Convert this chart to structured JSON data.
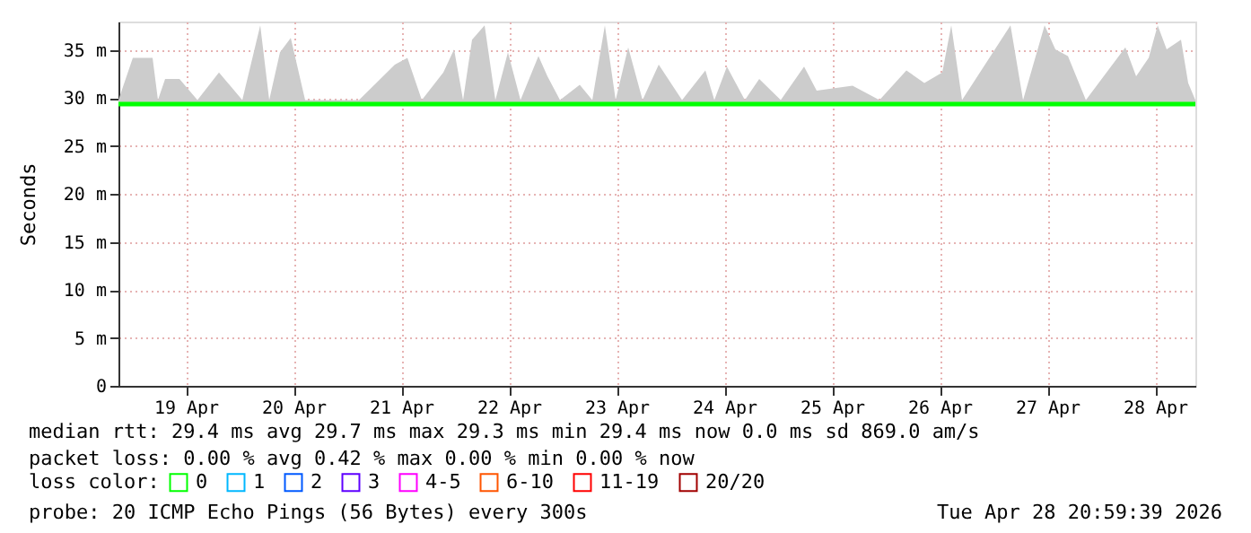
{
  "chart_data": {
    "type": "line",
    "ylabel": "Seconds",
    "xlim": [
      "2026-04-18T21:00",
      "2026-04-28T21:00"
    ],
    "xticks": [
      {
        "value": "2026-04-19T12:00",
        "label": "19 Apr"
      },
      {
        "value": "2026-04-20T12:00",
        "label": "20 Apr"
      },
      {
        "value": "2026-04-21T12:00",
        "label": "21 Apr"
      },
      {
        "value": "2026-04-22T12:00",
        "label": "22 Apr"
      },
      {
        "value": "2026-04-23T12:00",
        "label": "23 Apr"
      },
      {
        "value": "2026-04-24T12:00",
        "label": "24 Apr"
      },
      {
        "value": "2026-04-25T12:00",
        "label": "25 Apr"
      },
      {
        "value": "2026-04-26T12:00",
        "label": "26 Apr"
      },
      {
        "value": "2026-04-27T12:00",
        "label": "27 Apr"
      },
      {
        "value": "2026-04-28T12:00",
        "label": "28 Apr"
      }
    ],
    "ylim": [
      0,
      38
    ],
    "yticks": [
      0,
      {
        "value": 5,
        "label": "5 m"
      },
      {
        "value": 10,
        "label": "10 m"
      },
      {
        "value": 15,
        "label": "15 m"
      },
      {
        "value": 20,
        "label": "20 m"
      },
      {
        "value": 25,
        "label": "25 m"
      },
      {
        "value": 30,
        "label": "30 m"
      },
      {
        "value": 35,
        "label": "35 m"
      }
    ],
    "grid": true,
    "legend": "bottom left",
    "legend_title": "loss color:",
    "x": [
      "2026-04-18T21:00",
      "2026-04-19T00:12",
      "2026-04-19T04:36",
      "2026-04-19T05:48",
      "2026-04-19T07:24",
      "2026-04-19T10:36",
      "2026-04-19T14:36",
      "2026-04-19T19:24",
      "2026-04-20T00:36",
      "2026-04-20T04:36",
      "2026-04-20T06:36",
      "2026-04-20T09:00",
      "2026-04-20T11:24",
      "2026-04-20T14:36",
      "2026-04-21T02:36",
      "2026-04-21T10:36",
      "2026-04-21T13:24",
      "2026-04-21T16:36",
      "2026-04-21T21:24",
      "2026-04-21T23:48",
      "2026-04-22T01:48",
      "2026-04-22T03:48",
      "2026-04-22T06:36",
      "2026-04-22T09:00",
      "2026-04-22T11:48",
      "2026-04-22T14:36",
      "2026-04-22T18:36",
      "2026-04-22T20:36",
      "2026-04-22T23:24",
      "2026-04-23T03:48",
      "2026-04-23T06:36",
      "2026-04-23T09:24",
      "2026-04-23T11:48",
      "2026-04-23T14:36",
      "2026-04-23T17:48",
      "2026-04-23T21:24",
      "2026-04-24T02:36",
      "2026-04-24T07:48",
      "2026-04-24T09:48",
      "2026-04-24T12:36",
      "2026-04-24T16:36",
      "2026-04-24T19:48",
      "2026-04-25T00:36",
      "2026-04-25T05:48",
      "2026-04-25T08:36",
      "2026-04-25T16:36",
      "2026-04-25T22:36",
      "2026-04-26T04:36",
      "2026-04-26T08:36",
      "2026-04-26T12:36",
      "2026-04-26T14:36",
      "2026-04-26T17:00",
      "2026-04-27T03:48",
      "2026-04-27T06:36",
      "2026-04-27T11:24",
      "2026-04-27T13:48",
      "2026-04-27T16:36",
      "2026-04-27T20:36",
      "2026-04-28T05:24",
      "2026-04-28T07:48",
      "2026-04-28T10:36",
      "2026-04-28T12:36",
      "2026-04-28T14:36",
      "2026-04-28T17:48",
      "2026-04-28T19:24",
      "2026-04-28T21:00"
    ],
    "series": [
      {
        "name": "0",
        "color": "#00ff00",
        "values": [
          29.4,
          29.4,
          29.4,
          29.4,
          29.4,
          29.4,
          29.4,
          29.4,
          29.4,
          29.4,
          29.4,
          29.4,
          29.4,
          29.4,
          29.4,
          29.4,
          29.4,
          29.4,
          29.4,
          29.4,
          29.4,
          29.4,
          29.4,
          29.4,
          29.4,
          29.4,
          29.4,
          29.4,
          29.4,
          29.4,
          29.4,
          29.4,
          29.4,
          29.4,
          29.4,
          29.4,
          29.4,
          29.4,
          29.4,
          29.4,
          29.4,
          29.4,
          29.4,
          29.4,
          29.4,
          29.4,
          29.4,
          29.4,
          29.4,
          29.4,
          29.4,
          29.4,
          29.4,
          29.4,
          29.4,
          29.4,
          29.4,
          29.4,
          29.4,
          29.4,
          29.4,
          29.4,
          29.4,
          29.4,
          29.4,
          29.4
        ],
        "lower": [
          29.2,
          29.2,
          29.2,
          29.2,
          29.2,
          29.2,
          29.2,
          29.2,
          29.2,
          29.2,
          29.2,
          29.2,
          29.2,
          29.2,
          29.2,
          29.2,
          29.2,
          29.2,
          29.2,
          29.2,
          29.2,
          29.2,
          29.2,
          29.2,
          29.2,
          29.2,
          29.2,
          29.2,
          29.2,
          29.2,
          29.2,
          29.2,
          29.2,
          29.2,
          29.2,
          29.2,
          29.2,
          29.2,
          29.2,
          29.2,
          29.2,
          29.2,
          29.2,
          29.2,
          29.2,
          29.2,
          29.2,
          29.2,
          29.2,
          29.2,
          29.2,
          29.2,
          29.2,
          29.2,
          29.2,
          29.2,
          29.2,
          29.2,
          29.2,
          29.2,
          29.2,
          29.2,
          29.2,
          29.2,
          29.2,
          29.2
        ],
        "upper": [
          29.8,
          34.2,
          34.2,
          29.8,
          32,
          32,
          29.8,
          32.7,
          29.8,
          37.6,
          29.8,
          34.8,
          36.3,
          29.8,
          29.8,
          33.5,
          34.2,
          29.8,
          32.7,
          35.1,
          29.8,
          36.1,
          37.6,
          29.8,
          34.8,
          29.8,
          34.4,
          32.3,
          29.8,
          31.4,
          29.8,
          37.6,
          29.8,
          35.3,
          29.8,
          33.5,
          29.8,
          32.9,
          29.8,
          33.3,
          29.8,
          32,
          29.8,
          33.3,
          30.8,
          31.3,
          29.8,
          32.9,
          31.6,
          32.7,
          37.6,
          29.8,
          37.6,
          29.8,
          37.6,
          35.1,
          34.4,
          29.8,
          35.3,
          32.3,
          34.2,
          37.6,
          35.1,
          36.1,
          31.6,
          29.8
        ]
      },
      {
        "name": "1",
        "color": "#00b8ff",
        "values": [
          null,
          null,
          null,
          null,
          null,
          null,
          null,
          null,
          null,
          null,
          null,
          null,
          null,
          null,
          null,
          null,
          null,
          null,
          null,
          null,
          null,
          null,
          null,
          null,
          null,
          null,
          null,
          null,
          null,
          null,
          null,
          null,
          null,
          null,
          null,
          null,
          null,
          null,
          null,
          null,
          null,
          null,
          null,
          null,
          null,
          null,
          null,
          null,
          null,
          null,
          null,
          null,
          null,
          null,
          null,
          null,
          null,
          null,
          null,
          null,
          null,
          null,
          null,
          null,
          null,
          null
        ]
      },
      {
        "name": "2",
        "color": "#0059ff",
        "values": [
          null,
          null,
          null,
          null,
          null,
          null,
          null,
          null,
          null,
          null,
          null,
          null,
          null,
          null,
          null,
          null,
          null,
          null,
          null,
          null,
          null,
          null,
          null,
          null,
          null,
          null,
          null,
          null,
          null,
          null,
          null,
          null,
          null,
          null,
          null,
          null,
          null,
          null,
          null,
          null,
          null,
          null,
          null,
          null,
          null,
          null,
          null,
          null,
          null,
          null,
          null,
          null,
          null,
          null,
          null,
          null,
          null,
          null,
          null,
          null,
          null,
          null,
          null,
          null,
          null,
          null
        ]
      },
      {
        "name": "3",
        "color": "#5e00ff",
        "values": [
          null,
          null,
          null,
          null,
          null,
          null,
          null,
          null,
          null,
          null,
          null,
          null,
          null,
          null,
          null,
          null,
          null,
          null,
          null,
          null,
          null,
          null,
          null,
          null,
          null,
          null,
          null,
          null,
          null,
          null,
          null,
          null,
          null,
          null,
          null,
          null,
          null,
          null,
          null,
          null,
          null,
          null,
          null,
          null,
          null,
          null,
          null,
          null,
          null,
          null,
          null,
          null,
          null,
          null,
          null,
          null,
          null,
          null,
          null,
          null,
          null,
          null,
          null,
          null,
          null,
          null
        ]
      },
      {
        "name": "4-5",
        "color": "#ff00ff",
        "values": [
          null,
          null,
          null,
          null,
          null,
          null,
          null,
          null,
          null,
          null,
          null,
          null,
          null,
          null,
          null,
          null,
          null,
          null,
          null,
          null,
          null,
          null,
          null,
          null,
          null,
          null,
          null,
          null,
          null,
          null,
          null,
          null,
          null,
          null,
          null,
          null,
          null,
          null,
          null,
          null,
          null,
          null,
          null,
          null,
          null,
          null,
          null,
          null,
          null,
          null,
          null,
          null,
          null,
          null,
          null,
          null,
          null,
          null,
          null,
          null,
          null,
          null,
          null,
          null,
          null,
          null
        ]
      },
      {
        "name": "6-10",
        "color": "#ff5500",
        "values": [
          null,
          null,
          null,
          null,
          null,
          null,
          null,
          null,
          null,
          null,
          null,
          null,
          null,
          null,
          null,
          null,
          null,
          null,
          null,
          null,
          null,
          null,
          null,
          null,
          null,
          null,
          null,
          null,
          null,
          null,
          null,
          null,
          null,
          null,
          null,
          null,
          null,
          null,
          null,
          null,
          null,
          null,
          null,
          null,
          null,
          null,
          null,
          null,
          null,
          null,
          null,
          null,
          null,
          null,
          null,
          null,
          null,
          null,
          null,
          null,
          null,
          null,
          null,
          null,
          null,
          null
        ]
      },
      {
        "name": "11-19",
        "color": "#ff0000",
        "values": [
          null,
          null,
          null,
          null,
          null,
          null,
          null,
          null,
          null,
          null,
          null,
          null,
          null,
          null,
          null,
          null,
          null,
          null,
          null,
          null,
          null,
          null,
          null,
          null,
          null,
          null,
          null,
          null,
          null,
          null,
          null,
          null,
          null,
          null,
          null,
          null,
          null,
          null,
          null,
          null,
          null,
          null,
          null,
          null,
          null,
          null,
          null,
          null,
          null,
          null,
          null,
          null,
          null,
          null,
          null,
          null,
          null,
          null,
          null,
          null,
          null,
          null,
          null,
          null,
          null,
          null
        ]
      },
      {
        "name": "20/20",
        "color": "#a10000",
        "values": [
          null,
          null,
          null,
          null,
          null,
          null,
          null,
          null,
          null,
          null,
          null,
          null,
          null,
          null,
          null,
          null,
          null,
          null,
          null,
          null,
          null,
          null,
          null,
          null,
          null,
          null,
          null,
          null,
          null,
          null,
          null,
          null,
          null,
          null,
          null,
          null,
          null,
          null,
          null,
          null,
          null,
          null,
          null,
          null,
          null,
          null,
          null,
          null,
          null,
          null,
          null,
          null,
          null,
          null,
          null,
          null,
          null,
          null,
          null,
          null,
          null,
          null,
          null,
          null,
          null,
          null
        ]
      }
    ],
    "annotations": [
      "median rtt:  29.4 ms avg  29.7 ms max  29.3 ms min  29.4 ms now  0.0 ms sd  869.0   am/s",
      "packet loss: 0.00 % avg  0.42 % max  0.00 % min  0.00 % now",
      "probe:       20 ICMP Echo Pings (56 Bytes) every 300s",
      "Tue Apr 28 20:59:39 2026"
    ]
  }
}
